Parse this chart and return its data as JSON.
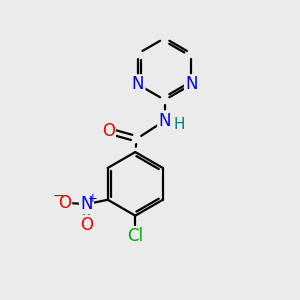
{
  "background_color": "#ebebeb",
  "bond_color": "#000000",
  "atom_colors": {
    "N": "#0000ee",
    "O": "#ee0000",
    "Cl": "#00aa00",
    "H": "#008080",
    "C": "#000000"
  },
  "font_size_atoms": 12,
  "font_size_h": 11
}
